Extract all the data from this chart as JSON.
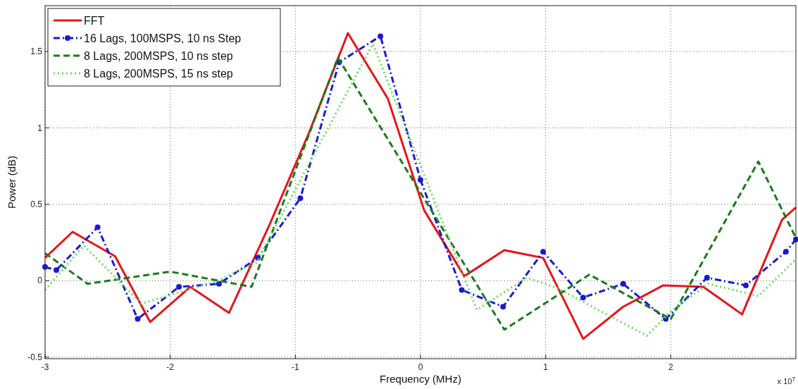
{
  "chart_data": {
    "type": "line",
    "xlabel": "Frequency (MHz)",
    "ylabel": "Power (dB)",
    "xlim": [
      -3,
      3
    ],
    "xticks": [
      -3,
      -2,
      -1,
      0,
      1,
      2
    ],
    "ylim": [
      -0.51,
      1.8
    ],
    "yticks": [
      -0.5,
      0,
      0.5,
      1,
      1.5
    ],
    "grid": true,
    "legend": "top left",
    "annotations": [
      "x 10$^{7}$"
    ],
    "series": [
      {
        "name": "FFT",
        "color": "#e8141b",
        "line_style": "solid",
        "marker": "none",
        "x": [
          -3.0,
          -2.78,
          -2.44,
          -2.16,
          -1.84,
          -1.53,
          -1.21,
          -0.89,
          -0.58,
          -0.26,
          0.03,
          0.35,
          0.67,
          0.98,
          1.3,
          1.62,
          1.94,
          2.26,
          2.57,
          2.89,
          3.0
        ],
        "values": [
          0.15,
          0.32,
          0.16,
          -0.27,
          -0.04,
          -0.21,
          0.36,
          0.97,
          1.62,
          1.19,
          0.46,
          0.03,
          0.2,
          0.15,
          -0.38,
          -0.17,
          -0.03,
          -0.04,
          -0.22,
          0.4,
          0.48
        ]
      },
      {
        "name": "16 Lags, 100MSPS, 10 ns Step",
        "color": "#1a1ad2",
        "line_style": "dashdot",
        "marker": "circle",
        "x": [
          -3.0,
          -2.91,
          -2.58,
          -2.26,
          -1.93,
          -1.61,
          -1.3,
          -0.96,
          -0.65,
          -0.32,
          0.0,
          0.33,
          0.66,
          0.98,
          1.3,
          1.62,
          1.96,
          2.29,
          2.6,
          2.92,
          3.0
        ],
        "values": [
          0.09,
          0.07,
          0.35,
          -0.25,
          -0.04,
          -0.02,
          0.15,
          0.54,
          1.43,
          1.6,
          0.66,
          -0.06,
          -0.17,
          0.19,
          -0.11,
          -0.02,
          -0.25,
          0.02,
          -0.03,
          0.19,
          0.27
        ]
      },
      {
        "name": "8 Lags, 200MSPS, 10 ns step",
        "color": "#1a7a1a",
        "line_style": "dashed",
        "marker": "none",
        "x": [
          -3.0,
          -2.66,
          -2.0,
          -1.35,
          -0.66,
          0.67,
          1.35,
          2.0,
          2.7,
          3.0
        ],
        "values": [
          0.18,
          -0.02,
          0.06,
          -0.04,
          1.46,
          -0.32,
          0.04,
          -0.25,
          0.78,
          0.28
        ]
      },
      {
        "name": "8 Lags, 200MSPS, 15 ns step",
        "color": "#66dd55",
        "line_style": "dotted",
        "marker": "none",
        "x": [
          -3.0,
          -2.69,
          -2.23,
          -1.62,
          -1.31,
          -0.38,
          0.45,
          0.85,
          1.1,
          1.81,
          2.0,
          2.3,
          2.7,
          3.0
        ],
        "values": [
          -0.06,
          0.23,
          -0.15,
          0.0,
          0.12,
          1.55,
          -0.19,
          0.02,
          -0.05,
          -0.36,
          -0.2,
          -0.02,
          -0.1,
          0.14
        ]
      }
    ]
  }
}
